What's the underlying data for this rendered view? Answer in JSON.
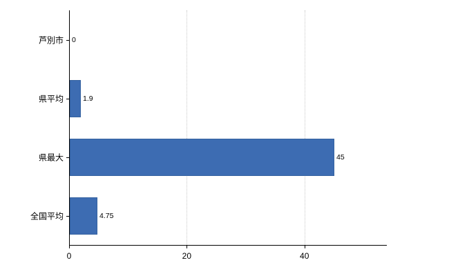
{
  "chart_data": {
    "type": "bar",
    "orientation": "horizontal",
    "title": "",
    "xlabel": "",
    "ylabel": "",
    "categories": [
      "芦別市",
      "県平均",
      "県最大",
      "全国平均"
    ],
    "values": [
      0,
      1.9,
      45,
      4.75
    ],
    "value_labels": [
      "0",
      "1.9",
      "45",
      "4.75"
    ],
    "xlim": [
      0,
      54
    ],
    "xticks": [
      0,
      20,
      40
    ],
    "xtick_labels": [
      "0",
      "20",
      "40"
    ],
    "grid": "dotted-vertical",
    "legend": "none",
    "bar_color": "#3d6cb2",
    "bar_border_color": "#34619f",
    "axis_color": "#000000",
    "gridline_color": "#c8c8c8"
  }
}
